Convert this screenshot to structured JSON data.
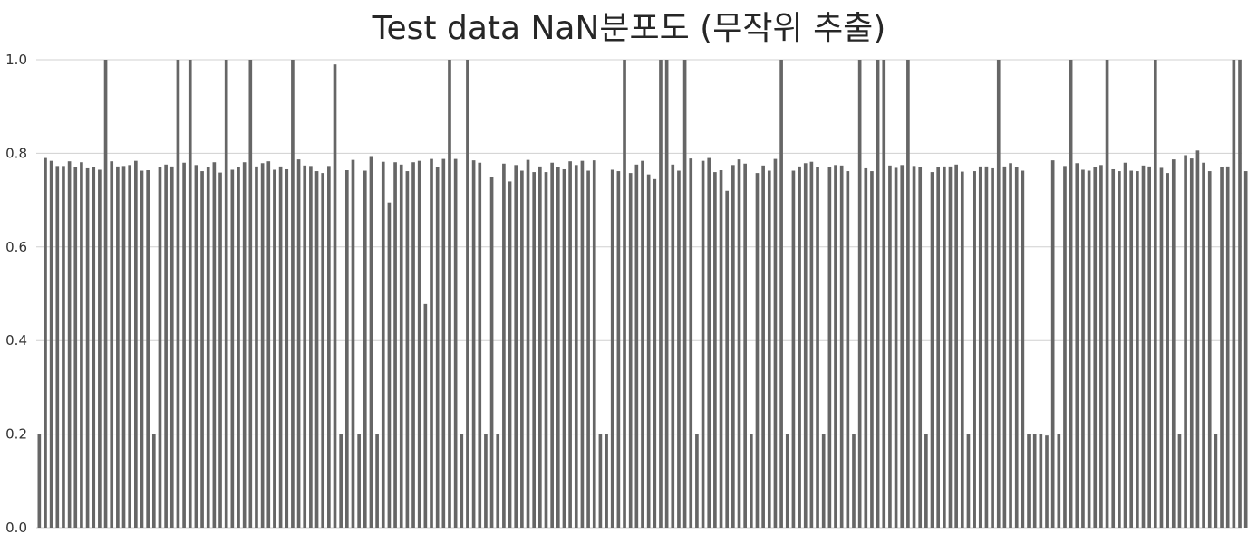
{
  "chart_data": {
    "type": "bar",
    "title": "Test data NaN분포도 (무작위 추출)",
    "xlabel": "",
    "ylabel": "",
    "ylim": [
      0,
      1.0
    ],
    "yticks": [
      "0.0",
      "0.2",
      "0.4",
      "0.6",
      "0.8",
      "1.0"
    ],
    "grid": "horizontal",
    "legend": "none",
    "bar_color": "#666666",
    "grid_color": "#d0d0d0",
    "values": [
      0.2,
      0.79,
      0.784,
      0.773,
      0.773,
      0.783,
      0.77,
      0.781,
      0.768,
      0.77,
      0.765,
      1.0,
      0.783,
      0.772,
      0.773,
      0.775,
      0.784,
      0.763,
      0.764,
      0.2,
      0.77,
      0.776,
      0.772,
      1.0,
      0.78,
      1.0,
      0.775,
      0.762,
      0.771,
      0.781,
      0.759,
      1.0,
      0.765,
      0.77,
      0.781,
      1.0,
      0.772,
      0.779,
      0.783,
      0.765,
      0.772,
      0.766,
      1.0,
      0.787,
      0.774,
      0.773,
      0.762,
      0.758,
      0.773,
      0.99,
      0.2,
      0.764,
      0.786,
      0.2,
      0.763,
      0.794,
      0.2,
      0.782,
      0.695,
      0.781,
      0.776,
      0.762,
      0.781,
      0.784,
      0.478,
      0.788,
      0.77,
      0.788,
      1.0,
      0.788,
      0.2,
      1.0,
      0.785,
      0.78,
      0.2,
      0.749,
      0.2,
      0.778,
      0.74,
      0.775,
      0.763,
      0.786,
      0.76,
      0.772,
      0.76,
      0.78,
      0.77,
      0.766,
      0.783,
      0.775,
      0.784,
      0.763,
      0.785,
      0.2,
      0.2,
      0.765,
      0.762,
      1.0,
      0.758,
      0.776,
      0.784,
      0.755,
      0.745,
      1.0,
      1.0,
      0.776,
      0.763,
      1.0,
      0.789,
      0.2,
      0.784,
      0.79,
      0.76,
      0.764,
      0.72,
      0.775,
      0.787,
      0.778,
      0.2,
      0.758,
      0.774,
      0.763,
      0.788,
      1.0,
      0.2,
      0.763,
      0.772,
      0.779,
      0.782,
      0.77,
      0.2,
      0.77,
      0.775,
      0.774,
      0.762,
      0.2,
      1.0,
      0.768,
      0.762,
      1.0,
      1.0,
      0.774,
      0.769,
      0.775,
      1.0,
      0.773,
      0.771,
      0.2,
      0.76,
      0.771,
      0.772,
      0.772,
      0.776,
      0.761,
      0.2,
      0.762,
      0.772,
      0.772,
      0.768,
      1.0,
      0.772,
      0.779,
      0.77,
      0.763,
      0.2,
      0.2,
      0.2,
      0.197,
      0.785,
      0.2,
      0.773,
      1.0,
      0.779,
      0.765,
      0.763,
      0.771,
      0.775,
      1.0,
      0.766,
      0.762,
      0.78,
      0.763,
      0.762,
      0.774,
      0.772,
      1.0,
      0.769,
      0.758,
      0.787,
      0.2,
      0.796,
      0.789,
      0.806,
      0.78,
      0.762,
      0.2,
      0.771,
      0.772,
      1.0,
      1.0,
      0.762
    ]
  }
}
